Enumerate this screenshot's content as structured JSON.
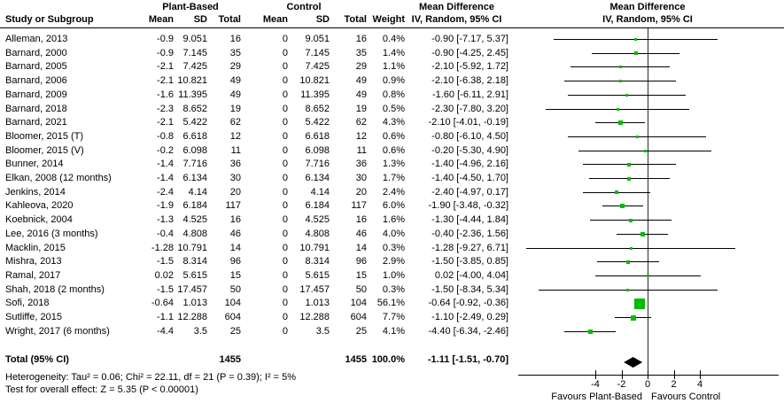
{
  "columns": {
    "group_plant": "Plant-Based",
    "group_control": "Control",
    "md_header": "Mean Difference",
    "md_subheader": "IV, Random, 95% CI",
    "study": "Study or Subgroup",
    "mean": "Mean",
    "sd": "SD",
    "total": "Total",
    "weight": "Weight"
  },
  "colors": {
    "marker_green": "#00bd00",
    "diamond_black": "#000000",
    "line_black": "#000000"
  },
  "chart_data": {
    "type": "forest",
    "effect_measure": "Mean Difference",
    "model": "IV, Random, 95% CI",
    "x_axis": {
      "ticks": [
        -4,
        -2,
        0,
        2,
        4
      ],
      "label_left": "Favours Plant-Based",
      "label_right": "Favours Control"
    },
    "studies": [
      {
        "name": "Alleman, 2013",
        "pb_mean": "-0.9",
        "pb_sd": "9.051",
        "pb_total": "16",
        "c_mean": "0",
        "c_sd": "9.051",
        "c_total": "16",
        "weight": "0.4%",
        "md_label": "-0.90 [-7.17, 5.37]",
        "md": -0.9,
        "lo": -7.17,
        "hi": 5.37
      },
      {
        "name": "Barnard, 2000",
        "pb_mean": "-0.9",
        "pb_sd": "7.145",
        "pb_total": "35",
        "c_mean": "0",
        "c_sd": "7.145",
        "c_total": "35",
        "weight": "1.4%",
        "md_label": "-0.90 [-4.25, 2.45]",
        "md": -0.9,
        "lo": -4.25,
        "hi": 2.45
      },
      {
        "name": "Barnard, 2005",
        "pb_mean": "-2.1",
        "pb_sd": "7.425",
        "pb_total": "29",
        "c_mean": "0",
        "c_sd": "7.425",
        "c_total": "29",
        "weight": "1.1%",
        "md_label": "-2.10 [-5.92, 1.72]",
        "md": -2.1,
        "lo": -5.92,
        "hi": 1.72
      },
      {
        "name": "Barnard, 2006",
        "pb_mean": "-2.1",
        "pb_sd": "10.821",
        "pb_total": "49",
        "c_mean": "0",
        "c_sd": "10.821",
        "c_total": "49",
        "weight": "0.9%",
        "md_label": "-2.10 [-6.38, 2.18]",
        "md": -2.1,
        "lo": -6.38,
        "hi": 2.18
      },
      {
        "name": "Barnard, 2009",
        "pb_mean": "-1.6",
        "pb_sd": "11.395",
        "pb_total": "49",
        "c_mean": "0",
        "c_sd": "11.395",
        "c_total": "49",
        "weight": "0.8%",
        "md_label": "-1.60 [-6.11, 2.91]",
        "md": -1.6,
        "lo": -6.11,
        "hi": 2.91
      },
      {
        "name": "Barnard, 2018",
        "pb_mean": "-2.3",
        "pb_sd": "8.652",
        "pb_total": "19",
        "c_mean": "0",
        "c_sd": "8.652",
        "c_total": "19",
        "weight": "0.5%",
        "md_label": "-2.30 [-7.80, 3.20]",
        "md": -2.3,
        "lo": -7.8,
        "hi": 3.2
      },
      {
        "name": "Barnard, 2021",
        "pb_mean": "-2.1",
        "pb_sd": "5.422",
        "pb_total": "62",
        "c_mean": "0",
        "c_sd": "5.422",
        "c_total": "62",
        "weight": "4.3%",
        "md_label": "-2.10 [-4.01, -0.19]",
        "md": -2.1,
        "lo": -4.01,
        "hi": -0.19
      },
      {
        "name": "Bloomer, 2015 (T)",
        "pb_mean": "-0.8",
        "pb_sd": "6.618",
        "pb_total": "12",
        "c_mean": "0",
        "c_sd": "6.618",
        "c_total": "12",
        "weight": "0.6%",
        "md_label": "-0.80 [-6.10, 4.50]",
        "md": -0.8,
        "lo": -6.1,
        "hi": 4.5
      },
      {
        "name": "Bloomer, 2015 (V)",
        "pb_mean": "-0.2",
        "pb_sd": "6.098",
        "pb_total": "11",
        "c_mean": "0",
        "c_sd": "6.098",
        "c_total": "11",
        "weight": "0.6%",
        "md_label": "-0.20 [-5.30, 4.90]",
        "md": -0.2,
        "lo": -5.3,
        "hi": 4.9
      },
      {
        "name": "Bunner, 2014",
        "pb_mean": "-1.4",
        "pb_sd": "7.716",
        "pb_total": "36",
        "c_mean": "0",
        "c_sd": "7.716",
        "c_total": "36",
        "weight": "1.3%",
        "md_label": "-1.40 [-4.96, 2.16]",
        "md": -1.4,
        "lo": -4.96,
        "hi": 2.16
      },
      {
        "name": "Elkan, 2008 (12 months)",
        "pb_mean": "-1.4",
        "pb_sd": "6.134",
        "pb_total": "30",
        "c_mean": "0",
        "c_sd": "6.134",
        "c_total": "30",
        "weight": "1.7%",
        "md_label": "-1.40 [-4.50, 1.70]",
        "md": -1.4,
        "lo": -4.5,
        "hi": 1.7
      },
      {
        "name": "Jenkins, 2014",
        "pb_mean": "-2.4",
        "pb_sd": "4.14",
        "pb_total": "20",
        "c_mean": "0",
        "c_sd": "4.14",
        "c_total": "20",
        "weight": "2.4%",
        "md_label": "-2.40 [-4.97, 0.17]",
        "md": -2.4,
        "lo": -4.97,
        "hi": 0.17
      },
      {
        "name": "Kahleova, 2020",
        "pb_mean": "-1.9",
        "pb_sd": "6.184",
        "pb_total": "117",
        "c_mean": "0",
        "c_sd": "6.184",
        "c_total": "117",
        "weight": "6.0%",
        "md_label": "-1.90 [-3.48, -0.32]",
        "md": -1.9,
        "lo": -3.48,
        "hi": -0.32
      },
      {
        "name": "Koebnick, 2004",
        "pb_mean": "-1.3",
        "pb_sd": "4.525",
        "pb_total": "16",
        "c_mean": "0",
        "c_sd": "4.525",
        "c_total": "16",
        "weight": "1.6%",
        "md_label": "-1.30 [-4.44, 1.84]",
        "md": -1.3,
        "lo": -4.44,
        "hi": 1.84
      },
      {
        "name": "Lee, 2016 (3 months)",
        "pb_mean": "-0.4",
        "pb_sd": "4.808",
        "pb_total": "46",
        "c_mean": "0",
        "c_sd": "4.808",
        "c_total": "46",
        "weight": "4.0%",
        "md_label": "-0.40 [-2.36, 1.56]",
        "md": -0.4,
        "lo": -2.36,
        "hi": 1.56
      },
      {
        "name": "Macklin, 2015",
        "pb_mean": "-1.28",
        "pb_sd": "10.791",
        "pb_total": "14",
        "c_mean": "0",
        "c_sd": "10.791",
        "c_total": "14",
        "weight": "0.3%",
        "md_label": "-1.28 [-9.27, 6.71]",
        "md": -1.28,
        "lo": -9.27,
        "hi": 6.71
      },
      {
        "name": "Mishra, 2013",
        "pb_mean": "-1.5",
        "pb_sd": "8.314",
        "pb_total": "96",
        "c_mean": "0",
        "c_sd": "8.314",
        "c_total": "96",
        "weight": "2.9%",
        "md_label": "-1.50 [-3.85, 0.85]",
        "md": -1.5,
        "lo": -3.85,
        "hi": 0.85
      },
      {
        "name": "Ramal, 2017",
        "pb_mean": "0.02",
        "pb_sd": "5.615",
        "pb_total": "15",
        "c_mean": "0",
        "c_sd": "5.615",
        "c_total": "15",
        "weight": "1.0%",
        "md_label": "0.02 [-4.00, 4.04]",
        "md": 0.02,
        "lo": -4.0,
        "hi": 4.04
      },
      {
        "name": "Shah, 2018 (2 months)",
        "pb_mean": "-1.5",
        "pb_sd": "17.457",
        "pb_total": "50",
        "c_mean": "0",
        "c_sd": "17.457",
        "c_total": "50",
        "weight": "0.3%",
        "md_label": "-1.50 [-8.34, 5.34]",
        "md": -1.5,
        "lo": -8.34,
        "hi": 5.34
      },
      {
        "name": "Sofi, 2018",
        "pb_mean": "-0.64",
        "pb_sd": "1.013",
        "pb_total": "104",
        "c_mean": "0",
        "c_sd": "1.013",
        "c_total": "104",
        "weight": "56.1%",
        "md_label": "-0.64 [-0.92, -0.36]",
        "md": -0.64,
        "lo": -0.92,
        "hi": -0.36
      },
      {
        "name": "Sutliffe, 2015",
        "pb_mean": "-1.1",
        "pb_sd": "12.288",
        "pb_total": "604",
        "c_mean": "0",
        "c_sd": "12.288",
        "c_total": "604",
        "weight": "7.7%",
        "md_label": "-1.10 [-2.49, 0.29]",
        "md": -1.1,
        "lo": -2.49,
        "hi": 0.29
      },
      {
        "name": "Wright, 2017 (6 months)",
        "pb_mean": "-4.4",
        "pb_sd": "3.5",
        "pb_total": "25",
        "c_mean": "0",
        "c_sd": "3.5",
        "c_total": "25",
        "weight": "4.1%",
        "md_label": "-4.40 [-6.34, -2.46]",
        "md": -4.4,
        "lo": -6.34,
        "hi": -2.46
      }
    ],
    "total": {
      "label": "Total (95% CI)",
      "pb_total": "1455",
      "c_total": "1455",
      "weight": "100.0%",
      "md_label": "-1.11 [-1.51, -0.70]",
      "md": -1.11,
      "lo": -1.51,
      "hi": -0.7
    },
    "heterogeneity": "Heterogeneity: Tau² = 0.06; Chi² = 22.11, df = 21 (P = 0.39); I² = 5%",
    "overall_effect": "Test for overall effect: Z = 5.35 (P < 0.00001)"
  }
}
